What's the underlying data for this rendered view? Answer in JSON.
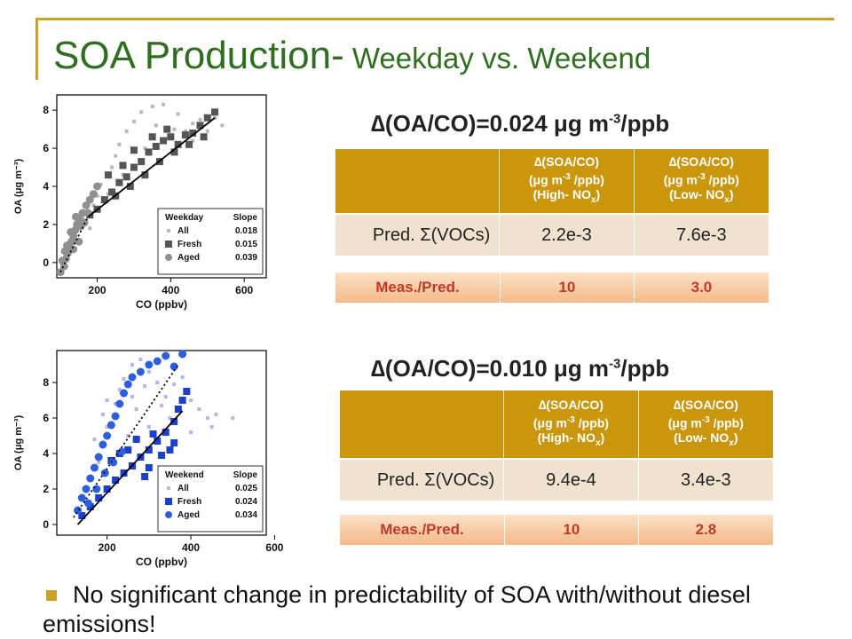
{
  "slide": {
    "title_main": "SOA Production-",
    "title_sub": " Weekday vs. Weekend",
    "bullet": "No significant change in predictability of SOA with/without diesel emissions!"
  },
  "weekday": {
    "delta_prefix": "∆(OA/CO)=0.024 ",
    "delta_unit": "μg m",
    "delta_exp": "-3",
    "delta_suffix": "/ppb",
    "col1_line1": "∆(SOA/CO)",
    "col1_line2a": "(μg m",
    "col1_line2exp": "-3",
    "col1_line2b": " /ppb)",
    "col1_line3a": "(High- NO",
    "col1_line3sub": "x",
    "col1_line3b": ")",
    "col2_line1": "∆(SOA/CO)",
    "col2_line2a": "(μg m",
    "col2_line2exp": "-3",
    "col2_line2b": " /ppb)",
    "col2_line3a": "(Low- NO",
    "col2_line3sub": "x",
    "col2_line3b": ")",
    "pred_label": "Pred. Σ(VOCs)",
    "pred_high": "2.2e-3",
    "pred_low": "7.6e-3",
    "meas_label": "Meas./Pred.",
    "meas_high": "10",
    "meas_low": "3.0"
  },
  "weekend": {
    "delta_prefix": "∆(OA/CO)=0.010 ",
    "delta_unit": "μg m",
    "delta_exp": "-3",
    "delta_suffix": "/ppb",
    "col1_line1": "∆(SOA/CO)",
    "col1_line2a": "(μg m",
    "col1_line2exp": "-3",
    "col1_line2b": " /ppb)",
    "col1_line3a": "(High- NO",
    "col1_line3sub": "x",
    "col1_line3b": ")",
    "col2_line1": "∆(SOA/CO)",
    "col2_line2a": "(μg m",
    "col2_line2exp": "-3",
    "col2_line2b": " /ppb)",
    "col2_line3a": "(Low- NO",
    "col2_line3sub": "x",
    "col2_line3b": ")",
    "pred_label": "Pred. Σ(VOCs)",
    "pred_high": "9.4e-4",
    "pred_low": "3.4e-3",
    "meas_label": "Meas./Pred.",
    "meas_high": "10",
    "meas_low": "2.8"
  },
  "chart_data": [
    {
      "type": "scatter",
      "xlabel": "CO (ppbv)",
      "ylabel": "OA (μg m⁻³)",
      "xlim": [
        90,
        660
      ],
      "ylim": [
        -0.8,
        8.8
      ],
      "xticks": [
        200,
        400,
        600
      ],
      "yticks": [
        0,
        2,
        4,
        6,
        8
      ],
      "legend": {
        "placement": "bottom-right",
        "header_left": "Weekday",
        "header_right": "Slope"
      },
      "series": [
        {
          "name": "All",
          "slope": "0.018",
          "color": "#b8b8b8",
          "marker": "small-square",
          "points": [
            [
              120,
              0.3
            ],
            [
              140,
              1.2
            ],
            [
              160,
              2.3
            ],
            [
              190,
              3.0
            ],
            [
              210,
              4.1
            ],
            [
              240,
              5.0
            ],
            [
              260,
              6.2
            ],
            [
              280,
              6.9
            ],
            [
              300,
              7.4
            ],
            [
              320,
              7.9
            ],
            [
              350,
              8.2
            ],
            [
              380,
              8.3
            ],
            [
              420,
              7.8
            ],
            [
              460,
              7.3
            ],
            [
              500,
              6.9
            ],
            [
              540,
              7.2
            ],
            [
              230,
              3.6
            ],
            [
              270,
              4.6
            ],
            [
              330,
              6.0
            ],
            [
              390,
              6.5
            ],
            [
              440,
              6.9
            ],
            [
              480,
              7.5
            ],
            [
              520,
              7.6
            ],
            [
              180,
              1.8
            ],
            [
              250,
              5.6
            ],
            [
              300,
              5.1
            ],
            [
              360,
              7.2
            ],
            [
              410,
              7.0
            ],
            [
              460,
              6.4
            ],
            [
              200,
              3.5
            ]
          ]
        },
        {
          "name": "Fresh",
          "slope": "0.015",
          "color": "#555555",
          "marker": "square",
          "points": [
            [
              180,
              2.5
            ],
            [
              200,
              2.8
            ],
            [
              220,
              3.3
            ],
            [
              240,
              3.7
            ],
            [
              260,
              4.2
            ],
            [
              280,
              4.5
            ],
            [
              300,
              5.0
            ],
            [
              320,
              5.3
            ],
            [
              340,
              5.8
            ],
            [
              360,
              6.1
            ],
            [
              380,
              6.4
            ],
            [
              400,
              6.6
            ],
            [
              420,
              6.2
            ],
            [
              440,
              6.7
            ],
            [
              460,
              6.8
            ],
            [
              480,
              7.2
            ],
            [
              500,
              7.6
            ],
            [
              520,
              7.9
            ],
            [
              250,
              3.5
            ],
            [
              290,
              4.0
            ],
            [
              330,
              4.6
            ],
            [
              370,
              5.3
            ],
            [
              410,
              5.8
            ],
            [
              450,
              6.2
            ],
            [
              490,
              6.6
            ],
            [
              300,
              5.9
            ],
            [
              350,
              6.6
            ],
            [
              270,
              5.1
            ],
            [
              390,
              7.0
            ],
            [
              230,
              4.6
            ]
          ]
        },
        {
          "name": "Aged",
          "slope": "0.039",
          "color": "#909090",
          "marker": "circle",
          "points": [
            [
              100,
              -0.5
            ],
            [
              110,
              -0.2
            ],
            [
              115,
              0.2
            ],
            [
              120,
              0.5
            ],
            [
              125,
              0.8
            ],
            [
              130,
              1.1
            ],
            [
              135,
              1.4
            ],
            [
              140,
              1.7
            ],
            [
              145,
              2.0
            ],
            [
              150,
              2.3
            ],
            [
              160,
              2.6
            ],
            [
              170,
              3.0
            ],
            [
              180,
              3.3
            ],
            [
              190,
              3.6
            ],
            [
              200,
              4.0
            ],
            [
              105,
              0.1
            ],
            [
              118,
              0.9
            ],
            [
              128,
              1.6
            ],
            [
              142,
              2.4
            ],
            [
              155,
              1.9
            ],
            [
              165,
              2.1
            ],
            [
              175,
              2.6
            ],
            [
              112,
              0.6
            ],
            [
              135,
              0.7
            ],
            [
              150,
              1.1
            ]
          ]
        }
      ],
      "fit_lines": [
        {
          "series": "Aged",
          "style": "dotted",
          "x": [
            100,
            175
          ],
          "y": [
            -0.5,
            2.4
          ]
        },
        {
          "series": "Fresh",
          "style": "solid",
          "x": [
            175,
            520
          ],
          "y": [
            2.4,
            7.6
          ]
        }
      ]
    },
    {
      "type": "scatter",
      "xlabel": "CO (ppbv)",
      "ylabel": "OA (μg m⁻³)",
      "xlim": [
        80,
        580
      ],
      "ylim": [
        -0.6,
        9.8
      ],
      "xticks": [
        200,
        400,
        600
      ],
      "yticks": [
        0,
        2,
        4,
        6,
        8
      ],
      "legend": {
        "placement": "bottom-right",
        "header_left": "Weekend",
        "header_right": "Slope"
      },
      "series": [
        {
          "name": "All",
          "slope": "0.025",
          "color": "#b3b7e8",
          "marker": "small-square",
          "points": [
            [
              150,
              2.0
            ],
            [
              180,
              3.5
            ],
            [
              200,
              5.5
            ],
            [
              220,
              6.8
            ],
            [
              240,
              8.2
            ],
            [
              260,
              9.0
            ],
            [
              280,
              9.3
            ],
            [
              300,
              8.6
            ],
            [
              320,
              8.0
            ],
            [
              340,
              7.2
            ],
            [
              360,
              7.9
            ],
            [
              380,
              8.3
            ],
            [
              400,
              7.0
            ],
            [
              420,
              6.5
            ],
            [
              440,
              6.0
            ],
            [
              460,
              6.2
            ],
            [
              200,
              7.0
            ],
            [
              230,
              7.6
            ],
            [
              260,
              7.2
            ],
            [
              290,
              7.8
            ],
            [
              250,
              5.0
            ],
            [
              300,
              5.5
            ],
            [
              350,
              6.0
            ],
            [
              400,
              5.2
            ],
            [
              450,
              5.5
            ],
            [
              500,
              6.0
            ],
            [
              170,
              4.8
            ],
            [
              190,
              6.2
            ],
            [
              270,
              6.5
            ],
            [
              330,
              6.7
            ]
          ]
        },
        {
          "name": "Fresh",
          "slope": "0.024",
          "color": "#1a3fd1",
          "marker": "square",
          "points": [
            [
              140,
              0.5
            ],
            [
              160,
              1.0
            ],
            [
              180,
              1.5
            ],
            [
              200,
              2.0
            ],
            [
              220,
              2.5
            ],
            [
              240,
              2.9
            ],
            [
              260,
              3.3
            ],
            [
              280,
              3.8
            ],
            [
              300,
              4.2
            ],
            [
              320,
              4.7
            ],
            [
              340,
              5.2
            ],
            [
              360,
              5.8
            ],
            [
              370,
              6.5
            ],
            [
              380,
              7.0
            ],
            [
              390,
              7.5
            ],
            [
              250,
              4.2
            ],
            [
              270,
              4.8
            ],
            [
              310,
              5.1
            ],
            [
              350,
              4.2
            ],
            [
              300,
              3.2
            ],
            [
              330,
              3.9
            ],
            [
              360,
              4.6
            ],
            [
              290,
              2.7
            ],
            [
              210,
              3.6
            ],
            [
              230,
              4.0
            ]
          ]
        },
        {
          "name": "Aged",
          "slope": "0.034",
          "color": "#2b5fe0",
          "marker": "circle",
          "points": [
            [
              130,
              0.8
            ],
            [
              140,
              1.5
            ],
            [
              150,
              2.0
            ],
            [
              160,
              2.6
            ],
            [
              170,
              3.2
            ],
            [
              180,
              3.8
            ],
            [
              190,
              4.5
            ],
            [
              200,
              5.0
            ],
            [
              210,
              5.6
            ],
            [
              220,
              6.1
            ],
            [
              230,
              6.8
            ],
            [
              240,
              7.4
            ],
            [
              250,
              7.9
            ],
            [
              260,
              8.3
            ],
            [
              280,
              8.6
            ],
            [
              300,
              9.0
            ],
            [
              320,
              9.2
            ],
            [
              340,
              9.5
            ],
            [
              360,
              8.9
            ],
            [
              380,
              9.6
            ],
            [
              155,
              1.2
            ],
            [
              175,
              2.0
            ],
            [
              195,
              2.9
            ],
            [
              215,
              3.5
            ],
            [
              235,
              4.1
            ]
          ]
        }
      ],
      "fit_lines": [
        {
          "series": "Aged",
          "style": "dotted",
          "x": [
            120,
            370
          ],
          "y": [
            0.4,
            9.0
          ]
        },
        {
          "series": "Fresh",
          "style": "solid",
          "x": [
            130,
            380
          ],
          "y": [
            0.0,
            6.4
          ]
        }
      ]
    }
  ]
}
